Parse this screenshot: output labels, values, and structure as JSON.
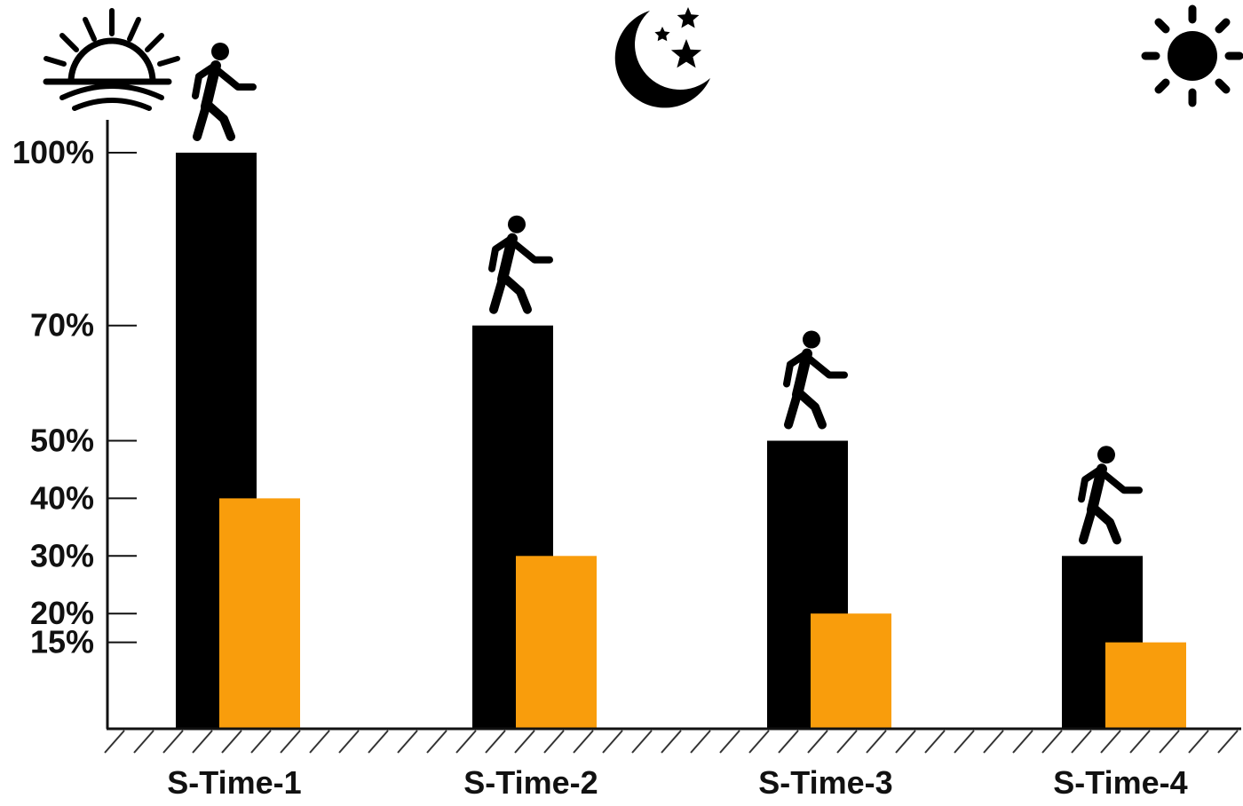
{
  "chart_data": {
    "type": "bar",
    "categories": [
      "S-Time-1",
      "S-Time-2",
      "S-Time-3",
      "S-Time-4"
    ],
    "series": [
      {
        "values": [
          100,
          70,
          50,
          30
        ]
      },
      {
        "values": [
          40,
          30,
          20,
          15
        ]
      }
    ],
    "ylim": [
      0,
      100
    ],
    "yticks": [
      100,
      70,
      50,
      40,
      30,
      20,
      15
    ],
    "ytick_labels": [
      "100%",
      "70%",
      "50%",
      "40%",
      "30%",
      "20%",
      "15%"
    ],
    "grid": false,
    "legend": "none",
    "colors": {
      "series_1": "#000000",
      "series_2": "#F99D0C",
      "axis": "#111111"
    },
    "icons": [
      "sunrise-icon",
      "moon-stars-icon",
      "sun-icon",
      "walking-person-icon"
    ]
  }
}
